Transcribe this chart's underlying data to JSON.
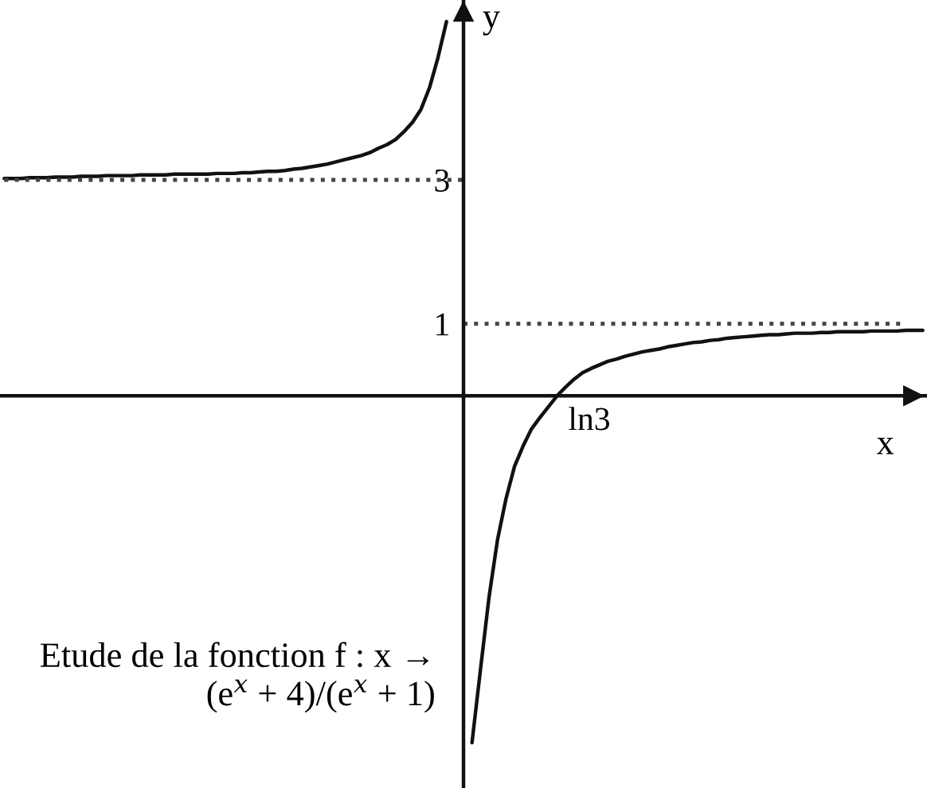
{
  "chart_data": {
    "type": "line",
    "xlabel": "x",
    "ylabel": "y",
    "annotations": [
      "ln3",
      "Etude de la fonction f : x → (e$^{x}$ + 4)/(e$^{x}$ + 1)"
    ],
    "categories": [
      null,
      null,
      null,
      null,
      null,
      null,
      null,
      null,
      null,
      null,
      null,
      null,
      null,
      null,
      null,
      null,
      null,
      null,
      null,
      null,
      null,
      null,
      null,
      null,
      null,
      null,
      null,
      null,
      null,
      null,
      null,
      null,
      null,
      null,
      null,
      null,
      null,
      null,
      null,
      null,
      null,
      null,
      null,
      null,
      null,
      null,
      null,
      null,
      null,
      null,
      null,
      null,
      null,
      null,
      null,
      null,
      null,
      null,
      null,
      null,
      null,
      null,
      null,
      null,
      null,
      null,
      null,
      null,
      null,
      null,
      null,
      null,
      null,
      null,
      null,
      null,
      null,
      null,
      null,
      null,
      null,
      null,
      null,
      null,
      null,
      null,
      null,
      null,
      null,
      null,
      null,
      null,
      null,
      null,
      null,
      null,
      null,
      null,
      null,
      null,
      null,
      null,
      null,
      null,
      null,
      null,
      null,
      null,
      null
    ],
    "ylim": [
      -5.45,
      5.5
    ],
    "yticks": [
      1,
      3
    ],
    "series": [
      {
        "color": "#111111",
        "values": [
          3.02,
          3.02,
          3.02,
          3.03,
          3.03,
          3.03,
          3.04,
          3.04,
          3.04,
          3.05,
          3.05,
          3.05,
          3.06,
          3.06,
          3.06,
          3.06,
          3.07,
          3.07,
          3.07,
          3.07,
          3.08,
          3.08,
          3.08,
          3.08,
          3.08,
          3.09,
          3.09,
          3.09,
          3.1,
          3.1,
          3.11,
          3.12,
          3.12,
          3.13,
          3.15,
          3.16,
          3.18,
          3.2,
          3.22,
          3.25,
          3.28,
          3.31,
          3.34,
          3.38,
          3.44,
          3.49,
          3.56,
          3.67,
          3.8,
          3.98,
          4.28,
          4.7,
          5.2,
          null,
          null,
          -4.82,
          -3.8,
          -2.8,
          -2.0,
          -1.43,
          -0.98,
          -0.7,
          -0.46,
          -0.3,
          -0.15,
          0,
          0.12,
          0.23,
          0.32,
          0.38,
          0.43,
          0.48,
          0.51,
          0.55,
          0.58,
          0.61,
          0.63,
          0.65,
          0.68,
          0.7,
          0.72,
          0.74,
          0.75,
          0.77,
          0.78,
          0.8,
          0.81,
          0.82,
          0.83,
          0.84,
          0.85,
          0.85,
          0.86,
          0.87,
          0.87,
          0.87,
          0.88,
          0.88,
          0.89,
          0.89,
          0.89,
          0.89,
          0.9,
          0.9,
          0.9,
          0.9,
          0.91,
          0.91,
          0.91
        ]
      },
      {
        "color": "#444444",
        "line_style": "dotted",
        "values": [
          3,
          3,
          3,
          3,
          3,
          3,
          3,
          3,
          3,
          3,
          3,
          3,
          3,
          3,
          3,
          3,
          3,
          3,
          3,
          3,
          3,
          3,
          3,
          3,
          3,
          3,
          3,
          3,
          3,
          3,
          3,
          3,
          3,
          3,
          3,
          3,
          3,
          3,
          3,
          3,
          3,
          3,
          3,
          3,
          3,
          3,
          3,
          3,
          3,
          3,
          3,
          3,
          3,
          3,
          3,
          null,
          null,
          null,
          null,
          null,
          null,
          null,
          null,
          null,
          null,
          null,
          null,
          null,
          null,
          null,
          null,
          null,
          null,
          null,
          null,
          null,
          null,
          null,
          null,
          null,
          null,
          null,
          null,
          null,
          null,
          null,
          null,
          null,
          null,
          null,
          null,
          null,
          null,
          null,
          null,
          null,
          null,
          null,
          null,
          null,
          null,
          null,
          null,
          null,
          null,
          null,
          null,
          null,
          null
        ]
      },
      {
        "color": "#444444",
        "line_style": "dotted",
        "values": [
          null,
          null,
          null,
          null,
          null,
          null,
          null,
          null,
          null,
          null,
          null,
          null,
          null,
          null,
          null,
          null,
          null,
          null,
          null,
          null,
          null,
          null,
          null,
          null,
          null,
          null,
          null,
          null,
          null,
          null,
          null,
          null,
          null,
          null,
          null,
          null,
          null,
          null,
          null,
          null,
          null,
          null,
          null,
          null,
          null,
          null,
          null,
          null,
          null,
          null,
          null,
          null,
          null,
          null,
          1,
          1,
          1,
          1,
          1,
          1,
          1,
          1,
          1,
          1,
          1,
          1,
          1,
          1,
          1,
          1,
          1,
          1,
          1,
          1,
          1,
          1,
          1,
          1,
          1,
          1,
          1,
          1,
          1,
          1,
          1,
          1,
          1,
          1,
          1,
          1,
          1,
          1,
          1,
          1,
          1,
          1,
          1,
          1,
          1,
          1,
          1,
          1,
          1,
          1,
          1,
          1,
          1,
          null,
          null
        ]
      }
    ]
  }
}
